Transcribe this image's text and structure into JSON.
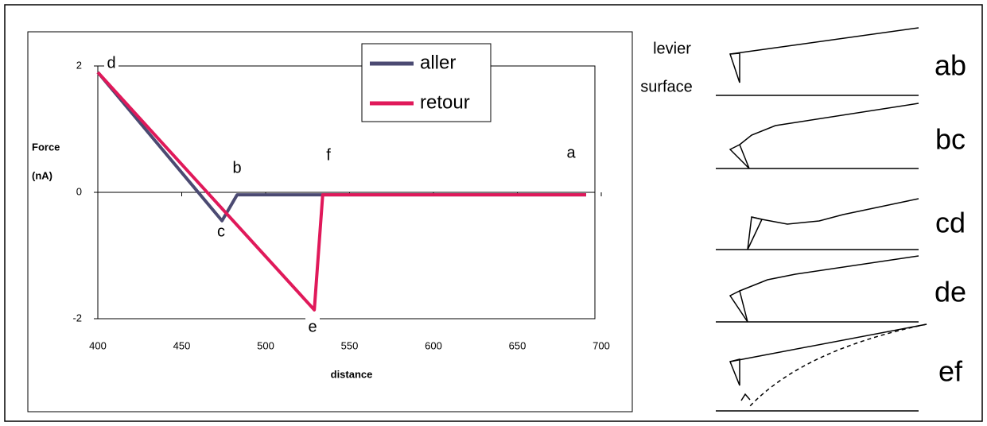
{
  "chart_data": {
    "type": "line",
    "ylabel": [
      "Force",
      "(nA)"
    ],
    "xlabel": "distance",
    "xlim": [
      400,
      700
    ],
    "xticks": [
      400,
      450,
      500,
      550,
      600,
      650,
      700
    ],
    "ylim": [
      -2,
      2
    ],
    "yticks": [
      -2,
      0,
      2
    ],
    "series": [
      {
        "name": "aller",
        "color": "#4b4a72",
        "x": [
          400,
          474,
          483,
          691
        ],
        "values": [
          1.9,
          -0.45,
          -0.04,
          -0.04
        ]
      },
      {
        "name": "retour",
        "color": "#e0195a",
        "x": [
          400,
          529,
          534,
          691
        ],
        "values": [
          1.9,
          -1.86,
          -0.04,
          -0.04
        ]
      }
    ],
    "annotations": [
      "d",
      "c",
      "b",
      "e",
      "f",
      "a"
    ]
  },
  "diagram": {
    "lever": "levier",
    "surface": "surface",
    "steps": [
      "ab",
      "bc",
      "cd",
      "de",
      "ef"
    ]
  }
}
